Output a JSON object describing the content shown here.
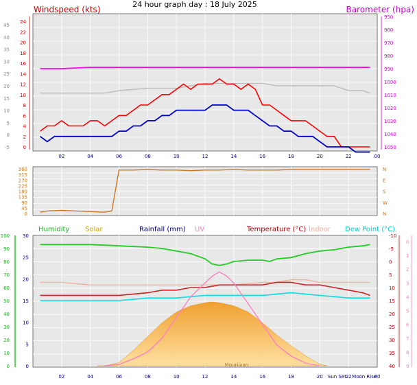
{
  "title": "24 hour graph day : 18 July 2025",
  "chart_data": [
    {
      "type": "line",
      "title": "",
      "left_label": "Windspeed (kts)",
      "right_label": "Barometer (hpa)",
      "x_ticks": [
        "02",
        "04",
        "06",
        "08",
        "10",
        "12",
        "14",
        "16",
        "18",
        "20",
        "22",
        "00"
      ],
      "y_left_ticks": [
        "-5",
        "0",
        "5",
        "10",
        "15",
        "20",
        "25",
        "30",
        "35",
        "40",
        "45"
      ],
      "y_left2_ticks": [
        "0",
        "2",
        "4",
        "6",
        "8",
        "10",
        "12",
        "14",
        "16",
        "18",
        "20",
        "22",
        "24"
      ],
      "y_right_ticks": [
        "950",
        "960",
        "970",
        "980",
        "990",
        "1000",
        "1010",
        "1020",
        "1030",
        "1040",
        "1050"
      ],
      "ylim_left": [
        -5,
        45
      ],
      "ylim_right": [
        945,
        1052
      ],
      "series": [
        {
          "name": "Gust",
          "color": "#ff0000",
          "x": [
            0.5,
            1,
            1.5,
            2,
            2.5,
            3,
            3.5,
            4,
            4.5,
            5,
            5.5,
            6,
            6.5,
            7,
            7.5,
            8,
            8.5,
            9,
            9.5,
            10,
            10.5,
            11,
            11.5,
            12,
            12.5,
            13,
            13.5,
            14,
            14.5,
            15,
            15.5,
            16,
            16.5,
            17,
            17.5,
            18,
            18.5,
            19,
            19.5,
            20,
            20.5,
            21,
            21.5,
            22,
            22.5,
            23,
            23.5
          ],
          "values": [
            3,
            4,
            4,
            5,
            4,
            4,
            4,
            5,
            5,
            4,
            5,
            6,
            6,
            7,
            8,
            8,
            9,
            10,
            10,
            11,
            12,
            11,
            12,
            12,
            12,
            13,
            12,
            12,
            11,
            12,
            11,
            8,
            8,
            7,
            6,
            5,
            5,
            5,
            4,
            3,
            2,
            2,
            0,
            0,
            0,
            0,
            0
          ]
        },
        {
          "name": "Wind",
          "color": "#0000cc",
          "x": [
            0.5,
            1,
            1.5,
            2,
            2.5,
            3,
            3.5,
            4,
            4.5,
            5,
            5.5,
            6,
            6.5,
            7,
            7.5,
            8,
            8.5,
            9,
            9.5,
            10,
            10.5,
            11,
            11.5,
            12,
            12.5,
            13,
            13.5,
            14,
            14.5,
            15,
            15.5,
            16,
            16.5,
            17,
            17.5,
            18,
            18.5,
            19,
            19.5,
            20,
            20.5,
            21,
            21.5,
            22,
            22.5,
            23,
            23.5
          ],
          "values": [
            2,
            1,
            2,
            2,
            2,
            2,
            2,
            2,
            2,
            2,
            2,
            3,
            3,
            4,
            4,
            5,
            5,
            6,
            6,
            7,
            7,
            7,
            7,
            7,
            8,
            8,
            8,
            7,
            7,
            7,
            6,
            5,
            4,
            4,
            3,
            3,
            2,
            2,
            2,
            1,
            0,
            0,
            0,
            0,
            -1,
            -1,
            -1
          ]
        },
        {
          "name": "Barometer",
          "color": "#ff00ff",
          "x": [
            0.5,
            2,
            4,
            6,
            8,
            10,
            12,
            14,
            16,
            18,
            20,
            22,
            23.5
          ],
          "values": [
            1010,
            1010,
            1011,
            1011,
            1011,
            1011,
            1011,
            1011,
            1011,
            1011,
            1011,
            1011,
            1011
          ]
        },
        {
          "name": "Indoor",
          "color": "#bbbbbb",
          "x": [
            0.5,
            2,
            4,
            5,
            6,
            8,
            9,
            10,
            11,
            12,
            13,
            14,
            15,
            16,
            17,
            18,
            19,
            20,
            21,
            22,
            23,
            23.5
          ],
          "values": [
            17,
            17,
            17,
            17,
            18,
            19,
            19,
            19,
            20,
            21,
            21,
            21,
            21,
            21,
            20,
            20,
            20,
            20,
            20,
            18,
            18,
            17
          ]
        }
      ]
    },
    {
      "type": "line",
      "title": "",
      "y_left_ticks": [
        "0",
        "45",
        "90",
        "135",
        "180",
        "225",
        "270",
        "315",
        "360"
      ],
      "y_right_ticks": [
        "N",
        "E",
        "S",
        "W",
        "N"
      ],
      "series": [
        {
          "name": "Wind direction",
          "color": "#cc7722",
          "x": [
            0.5,
            1,
            2,
            3,
            4,
            5,
            5.5,
            6,
            7,
            8,
            9,
            10,
            11,
            12,
            13,
            14,
            15,
            16,
            17,
            18,
            19,
            20,
            21,
            22,
            23,
            23.5
          ],
          "values": [
            10,
            20,
            25,
            20,
            15,
            10,
            20,
            350,
            350,
            355,
            350,
            350,
            345,
            350,
            350,
            355,
            350,
            350,
            350,
            355,
            355,
            355,
            355,
            355,
            355,
            355
          ]
        }
      ]
    },
    {
      "type": "area",
      "title": "",
      "legend": [
        "Humidity",
        "Solar",
        "Rainfall (mm)",
        "UV",
        "Temperature (°C)",
        "Indoor",
        "Dew Point (°C)"
      ],
      "x_ticks": [
        "02",
        "04",
        "06",
        "08",
        "10",
        "12",
        "14",
        "16",
        "18",
        "20",
        "Sun Set",
        "22",
        "Moon Rise",
        "00"
      ],
      "y_left_ticks": [
        "0",
        "10",
        "20",
        "30",
        "40",
        "50",
        "60",
        "70",
        "80",
        "90",
        "100"
      ],
      "y_left2_ticks": [
        "0",
        "5",
        "10",
        "15",
        "20",
        "25",
        "30"
      ],
      "y_right_ticks": [
        "-10",
        "-5",
        "0",
        "5",
        "10",
        "15",
        "20",
        "25",
        "30",
        "35",
        "40"
      ],
      "y_right2_ticks": [
        "0",
        "1",
        "2",
        "3",
        "4",
        "5",
        "6",
        "7",
        "8",
        "9"
      ],
      "watermark": "Mourilyan",
      "series": [
        {
          "name": "Humidity",
          "color": "#22cc22",
          "x": [
            0.5,
            2,
            4,
            6,
            8,
            9,
            10,
            11,
            12,
            12.5,
            13,
            13.5,
            14,
            15,
            16,
            16.5,
            17,
            18,
            19,
            20,
            21,
            22,
            23,
            23.5
          ],
          "values": [
            93,
            93,
            93,
            92,
            91,
            90,
            88,
            86,
            82,
            78,
            77,
            78,
            80,
            81,
            81,
            80,
            82,
            83,
            86,
            88,
            89,
            91,
            92,
            93
          ]
        },
        {
          "name": "Solar",
          "color": "#f0b040",
          "x": [
            4.5,
            5,
            6,
            7,
            8,
            9,
            10,
            11,
            12,
            12.5,
            13,
            14,
            15,
            16,
            17,
            18,
            19,
            20,
            20.5
          ],
          "values": [
            0,
            0,
            40,
            200,
            380,
            560,
            700,
            780,
            820,
            830,
            820,
            780,
            700,
            560,
            400,
            260,
            130,
            20,
            0
          ]
        },
        {
          "name": "Temperature (°C)",
          "color": "#cc2222",
          "x": [
            0.5,
            2,
            4,
            6,
            8,
            9,
            10,
            11,
            12,
            13,
            14,
            15,
            16,
            17,
            18,
            19,
            20,
            21,
            22,
            23,
            23.5
          ],
          "values": [
            17,
            17,
            17,
            17,
            18,
            19,
            19,
            20,
            20,
            21,
            21,
            21,
            21,
            22,
            22,
            21,
            21,
            20,
            19,
            18,
            17
          ]
        },
        {
          "name": "Indoor",
          "color": "#f4b0a0",
          "x": [
            0.5,
            2,
            4,
            6,
            8,
            10,
            12,
            14,
            16,
            17,
            18,
            19,
            20,
            21,
            22,
            23,
            23.5
          ],
          "values": [
            22,
            22,
            21,
            21,
            21,
            21,
            21,
            21,
            22,
            22,
            23,
            23,
            22,
            22,
            22,
            22,
            22
          ]
        },
        {
          "name": "Dew Point (°C)",
          "color": "#00e0e0",
          "x": [
            0.5,
            2,
            4,
            6,
            8,
            10,
            12,
            14,
            16,
            18,
            20,
            22,
            23.5
          ],
          "values": [
            15,
            15,
            15,
            15,
            16,
            16,
            17,
            17,
            17,
            18,
            17,
            16,
            16
          ]
        },
        {
          "name": "UV",
          "color": "#ff80c0",
          "x": [
            5,
            6,
            7,
            8,
            9,
            10,
            11,
            12,
            12.5,
            13,
            13.5,
            14,
            15,
            16,
            17,
            18,
            19,
            20
          ],
          "values": [
            0,
            0.1,
            0.5,
            1,
            2,
            3.5,
            5,
            6,
            6.5,
            6.8,
            6.5,
            6,
            4.5,
            3,
            1.5,
            0.7,
            0.2,
            0
          ]
        }
      ]
    }
  ]
}
